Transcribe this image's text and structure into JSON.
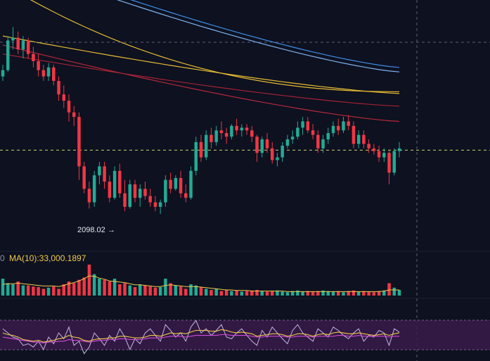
{
  "colors": {
    "background": "#0d1120",
    "up": "#22ab94",
    "down": "#f23645",
    "ma_blue": "#3e8ee8",
    "ma_lightblue": "#7fb3f0",
    "ma_yellow": "#e5b933",
    "ma_red": "#b8283a",
    "ma_red2": "#a22232",
    "current_price_line": "#c9d56b",
    "rsi_band": "#3a1b4b",
    "rsi_line": "#c0b7e0",
    "rsi_yellow": "#f0c94a",
    "rsi_magenta": "#d04bd8"
  },
  "low_marker": {
    "value": "2098.02",
    "arrow": "→"
  },
  "volume": {
    "zero_tick": "0",
    "ma_label": "MA(10):33,000.1897"
  },
  "chart_data": {
    "type": "candlestick",
    "panes": [
      "price",
      "volume",
      "rsi"
    ],
    "price_ylim": [
      2060,
      2330
    ],
    "candles": [
      [
        2245,
        2258,
        2240,
        2252
      ],
      [
        2252,
        2290,
        2250,
        2285
      ],
      [
        2285,
        2300,
        2275,
        2288
      ],
      [
        2288,
        2295,
        2270,
        2275
      ],
      [
        2275,
        2290,
        2265,
        2285
      ],
      [
        2285,
        2288,
        2265,
        2270
      ],
      [
        2270,
        2278,
        2255,
        2262
      ],
      [
        2262,
        2270,
        2245,
        2252
      ],
      [
        2252,
        2258,
        2240,
        2245
      ],
      [
        2245,
        2260,
        2240,
        2255
      ],
      [
        2255,
        2258,
        2235,
        2240
      ],
      [
        2240,
        2245,
        2218,
        2225
      ],
      [
        2225,
        2235,
        2210,
        2218
      ],
      [
        2218,
        2225,
        2195,
        2205
      ],
      [
        2205,
        2212,
        2190,
        2200
      ],
      [
        2200,
        2205,
        2130,
        2145
      ],
      [
        2145,
        2150,
        2115,
        2120
      ],
      [
        2120,
        2128,
        2098,
        2105
      ],
      [
        2105,
        2140,
        2100,
        2135
      ],
      [
        2135,
        2150,
        2125,
        2145
      ],
      [
        2145,
        2150,
        2120,
        2128
      ],
      [
        2128,
        2135,
        2105,
        2110
      ],
      [
        2110,
        2145,
        2108,
        2140
      ],
      [
        2140,
        2148,
        2110,
        2115
      ],
      [
        2115,
        2130,
        2095,
        2100
      ],
      [
        2100,
        2130,
        2098,
        2125
      ],
      [
        2125,
        2130,
        2105,
        2110
      ],
      [
        2110,
        2125,
        2100,
        2120
      ],
      [
        2120,
        2128,
        2108,
        2112
      ],
      [
        2112,
        2120,
        2100,
        2105
      ],
      [
        2105,
        2112,
        2095,
        2100
      ],
      [
        2100,
        2108,
        2092,
        2105
      ],
      [
        2105,
        2135,
        2100,
        2130
      ],
      [
        2130,
        2138,
        2115,
        2120
      ],
      [
        2120,
        2135,
        2118,
        2132
      ],
      [
        2132,
        2140,
        2110,
        2115
      ],
      [
        2115,
        2125,
        2105,
        2110
      ],
      [
        2110,
        2145,
        2108,
        2140
      ],
      [
        2140,
        2178,
        2135,
        2172
      ],
      [
        2172,
        2180,
        2150,
        2155
      ],
      [
        2155,
        2185,
        2152,
        2180
      ],
      [
        2180,
        2188,
        2165,
        2172
      ],
      [
        2172,
        2190,
        2168,
        2185
      ],
      [
        2185,
        2195,
        2175,
        2182
      ],
      [
        2182,
        2188,
        2170,
        2178
      ],
      [
        2178,
        2192,
        2175,
        2190
      ],
      [
        2190,
        2198,
        2180,
        2185
      ],
      [
        2185,
        2192,
        2178,
        2188
      ],
      [
        2188,
        2192,
        2180,
        2185
      ],
      [
        2185,
        2190,
        2172,
        2178
      ],
      [
        2178,
        2180,
        2150,
        2160
      ],
      [
        2160,
        2178,
        2155,
        2175
      ],
      [
        2175,
        2182,
        2160,
        2165
      ],
      [
        2165,
        2172,
        2148,
        2152
      ],
      [
        2152,
        2160,
        2145,
        2155
      ],
      [
        2155,
        2172,
        2150,
        2168
      ],
      [
        2168,
        2180,
        2165,
        2175
      ],
      [
        2175,
        2185,
        2170,
        2178
      ],
      [
        2178,
        2195,
        2175,
        2188
      ],
      [
        2188,
        2200,
        2180,
        2195
      ],
      [
        2195,
        2200,
        2182,
        2185
      ],
      [
        2185,
        2192,
        2175,
        2180
      ],
      [
        2180,
        2185,
        2160,
        2165
      ],
      [
        2165,
        2180,
        2160,
        2175
      ],
      [
        2175,
        2188,
        2170,
        2182
      ],
      [
        2182,
        2195,
        2178,
        2190
      ],
      [
        2190,
        2198,
        2180,
        2185
      ],
      [
        2185,
        2200,
        2182,
        2195
      ],
      [
        2195,
        2202,
        2185,
        2190
      ],
      [
        2190,
        2195,
        2165,
        2170
      ],
      [
        2170,
        2185,
        2165,
        2180
      ],
      [
        2180,
        2185,
        2165,
        2170
      ],
      [
        2170,
        2175,
        2160,
        2165
      ],
      [
        2165,
        2170,
        2158,
        2162
      ],
      [
        2162,
        2168,
        2150,
        2155
      ],
      [
        2155,
        2165,
        2150,
        2160
      ],
      [
        2160,
        2162,
        2125,
        2138
      ],
      [
        2138,
        2165,
        2135,
        2162
      ],
      [
        2162,
        2172,
        2155,
        2165
      ]
    ],
    "moving_averages": [
      {
        "values": [
          2380,
          2255
        ]
      },
      {
        "values": [
          2375,
          2250
        ]
      },
      {
        "values": [
          2348,
          2228
        ]
      },
      {
        "values": [
          2290,
          2226
        ]
      },
      {
        "values": [
          2280,
          2195
        ]
      },
      {
        "values": [
          2270,
          2212
        ]
      }
    ],
    "current_price": 2163,
    "volume": [
      30,
      22,
      20,
      25,
      18,
      18,
      16,
      15,
      12,
      14,
      16,
      12,
      20,
      25,
      22,
      28,
      32,
      55,
      38,
      30,
      28,
      25,
      30,
      20,
      22,
      18,
      15,
      20,
      18,
      16,
      14,
      15,
      30,
      22,
      18,
      16,
      12,
      20,
      18,
      15,
      12,
      10,
      12,
      8,
      10,
      8,
      9,
      7,
      8,
      9,
      10,
      8,
      7,
      8,
      9,
      7,
      6,
      8,
      9,
      7,
      8,
      7,
      8,
      9,
      8,
      7,
      8,
      6,
      8,
      9,
      7,
      8,
      7,
      6,
      8,
      9,
      22,
      14,
      10
    ],
    "volume_ma": [
      20,
      21,
      21,
      22,
      21,
      20,
      19,
      18,
      17,
      17,
      17,
      16,
      18,
      21,
      23,
      26,
      30,
      35,
      34,
      31,
      29,
      26,
      25,
      24,
      23,
      21,
      19,
      19,
      18,
      17,
      16,
      16,
      18,
      19,
      18,
      17,
      16,
      16,
      16,
      15,
      14,
      13,
      12,
      11,
      10,
      10,
      9,
      9,
      9,
      8,
      8,
      8,
      8,
      8,
      8,
      8,
      7,
      7,
      7,
      7,
      7,
      7,
      7,
      7,
      7,
      7,
      7,
      7,
      7,
      7,
      7,
      7,
      7,
      7,
      7,
      8,
      10,
      10,
      10
    ],
    "rsi": [
      60,
      55,
      50,
      48,
      40,
      42,
      38,
      45,
      35,
      50,
      42,
      55,
      48,
      62,
      40,
      45,
      30,
      38,
      55,
      48,
      40,
      52,
      45,
      60,
      50,
      35,
      48,
      42,
      55,
      60,
      52,
      45,
      65,
      58,
      50,
      55,
      45,
      62,
      70,
      55,
      60,
      52,
      58,
      65,
      50,
      48,
      55,
      60,
      52,
      45,
      40,
      58,
      50,
      62,
      55,
      48,
      42,
      58,
      65,
      55,
      50,
      45,
      60,
      55,
      50,
      62,
      58,
      52,
      48,
      55,
      60,
      45,
      52,
      50,
      58,
      55,
      40,
      60,
      56
    ],
    "rsi_ma": [
      55,
      53,
      52,
      50,
      47,
      46,
      45,
      46,
      44,
      45,
      46,
      48,
      49,
      52,
      50,
      49,
      46,
      45,
      47,
      48,
      48,
      49,
      49,
      51,
      51,
      50,
      49,
      49,
      50,
      52,
      52,
      51,
      53,
      55,
      54,
      55,
      54,
      56,
      58,
      58,
      58,
      57,
      57,
      59,
      58,
      56,
      55,
      56,
      55,
      54,
      51,
      52,
      53,
      54,
      54,
      53,
      51,
      52,
      54,
      54,
      53,
      51,
      53,
      54,
      53,
      55,
      56,
      55,
      54,
      54,
      55,
      54,
      53,
      52,
      53,
      54,
      52,
      54,
      55
    ],
    "rsi_smooth": [
      50,
      49,
      48,
      47,
      46,
      45,
      44,
      44,
      43,
      44,
      44,
      45,
      45,
      47,
      46,
      46,
      45,
      44,
      45,
      46,
      46,
      47,
      47,
      48,
      48,
      47,
      47,
      47,
      48,
      49,
      49,
      49,
      50,
      51,
      51,
      51,
      50,
      51,
      52,
      52,
      52,
      52,
      52,
      53,
      53,
      52,
      52,
      52,
      52,
      51,
      50,
      50,
      51,
      51,
      51,
      51,
      50,
      50,
      51,
      51,
      51,
      50,
      51,
      51,
      51,
      51,
      52,
      52,
      51,
      51,
      52,
      51,
      51,
      51,
      51,
      51,
      50,
      51,
      51
    ]
  }
}
